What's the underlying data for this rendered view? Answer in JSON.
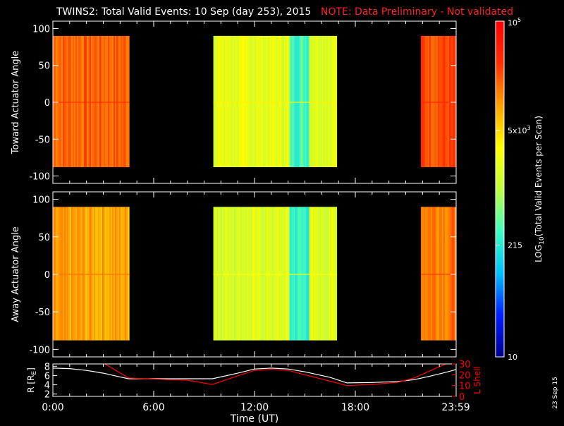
{
  "title": "TWINS2: Total Valid Events: 10 Sep (day 253), 2015",
  "note": "NOTE: Data Preliminary - Not validated",
  "colors": {
    "title": "#ffffff",
    "note": "#ff2020",
    "r_line": "#ffffff",
    "l_line": "#ff0000",
    "background": "#000000"
  },
  "colorbar": {
    "label_base": "LOG",
    "label_sub": "10",
    "label_rest": "(Total Valid Events per Scan)",
    "ticks": [
      {
        "text": "10",
        "mant": "",
        "exp": "",
        "value": 10
      },
      {
        "text": "215",
        "mant": "",
        "exp": "",
        "value": 215
      },
      {
        "text": "",
        "mant": "5x10",
        "exp": "3",
        "value": 5000
      },
      {
        "text": "",
        "mant": "10",
        "exp": "5",
        "value": 100000
      }
    ],
    "range": [
      10,
      100000
    ],
    "scale": "log",
    "stops": [
      "#00008f",
      "#0020ff",
      "#00c0ff",
      "#40ffc0",
      "#c0ff40",
      "#ffff00",
      "#ffa000",
      "#ff3000",
      "#ff0000"
    ]
  },
  "date_stamp": "23 Sep 15",
  "chart_data": [
    {
      "type": "heatmap",
      "panel": "top",
      "ylabel": "Toward Actuator Angle",
      "ylim": [
        -110,
        110
      ],
      "yticks": [
        "100",
        "50",
        "0",
        "-50",
        "-100"
      ],
      "ytick_values": [
        100,
        50,
        0,
        -50,
        -100
      ],
      "xlim_hours": [
        0,
        24
      ],
      "angle_range": [
        -88,
        90
      ],
      "blocks": [
        {
          "start_hour": 0.0,
          "end_hour": 4.55,
          "level": 0.82
        },
        {
          "start_hour": 9.55,
          "end_hour": 16.9,
          "level": 0.58,
          "dip": {
            "start_hour": 14.05,
            "end_hour": 15.2,
            "level": 0.38
          }
        },
        {
          "start_hour": 21.9,
          "end_hour": 24.0,
          "level": 0.85
        }
      ]
    },
    {
      "type": "heatmap",
      "panel": "middle",
      "ylabel": "Away Actuator Angle",
      "ylim": [
        -110,
        110
      ],
      "yticks": [
        "100",
        "50",
        "0",
        "-50",
        "-100"
      ],
      "ytick_values": [
        100,
        50,
        0,
        -50,
        -100
      ],
      "xlim_hours": [
        0,
        24
      ],
      "angle_range": [
        -88,
        90
      ],
      "blocks": [
        {
          "start_hour": 0.0,
          "end_hour": 4.55,
          "level": 0.74
        },
        {
          "start_hour": 9.55,
          "end_hour": 16.9,
          "level": 0.56,
          "dip": {
            "start_hour": 14.05,
            "end_hour": 15.2,
            "level": 0.36
          }
        },
        {
          "start_hour": 21.9,
          "end_hour": 24.0,
          "level": 0.8
        }
      ]
    },
    {
      "type": "line",
      "panel": "bottom",
      "ylabel_left": "R [R",
      "ylabel_left_sub": "E",
      "ylabel_left_end": "]",
      "ylabel_right": "L Shell",
      "ylim_left": [
        1.5,
        8.5
      ],
      "ylim_right": [
        0,
        30
      ],
      "yticks_left": [
        "8",
        "6",
        "4",
        "2"
      ],
      "ytick_left_values": [
        8,
        6,
        4,
        2
      ],
      "yticks_right": [
        "30",
        "20",
        "10",
        "0"
      ],
      "ytick_right_values": [
        30,
        20,
        10,
        0
      ],
      "xlabel": "Time (UT)",
      "xticks": [
        "0:00",
        "6:00",
        "12:00",
        "18:00",
        "23:59"
      ],
      "xtick_hours": [
        0,
        6,
        12,
        18,
        23.98
      ],
      "series": [
        {
          "name": "R",
          "axis": "left",
          "x": [
            0,
            1,
            2,
            3,
            4,
            4.5,
            6,
            8,
            9.5,
            11,
            12,
            13,
            14,
            15,
            16.5,
            17.5,
            19,
            20.5,
            21.5,
            22.5,
            23.5,
            24
          ],
          "y": [
            7.6,
            7.5,
            7.1,
            6.5,
            5.7,
            5.3,
            5.3,
            5.3,
            5.3,
            6.5,
            7.4,
            7.6,
            7.4,
            6.8,
            5.6,
            4.4,
            4.5,
            4.7,
            5.1,
            5.9,
            6.8,
            7.3
          ]
        },
        {
          "name": "L Shell",
          "axis": "right",
          "x": [
            3.1,
            4.5,
            6,
            8,
            9.5,
            11,
            12,
            13,
            14,
            15,
            16.5,
            17.5,
            19,
            20.5,
            21.5,
            22.5,
            23.4
          ],
          "y": [
            30,
            17,
            16,
            15,
            11,
            19,
            24,
            25,
            24,
            20,
            14,
            10,
            11,
            13,
            17,
            24,
            30
          ]
        }
      ]
    }
  ]
}
